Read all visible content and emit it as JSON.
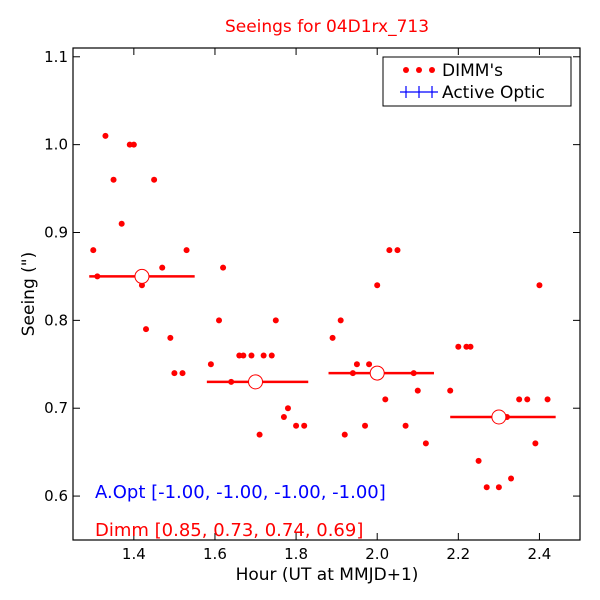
{
  "chart_data": {
    "type": "scatter",
    "title": "Seeings for 04D1rx_713",
    "xlabel": "Hour (UT at MMJD+1)",
    "ylabel": "Seeing (\")",
    "xlim": [
      1.25,
      2.5
    ],
    "ylim": [
      0.55,
      1.11
    ],
    "xticks": [
      1.4,
      1.6,
      1.8,
      2.0,
      2.2,
      2.4
    ],
    "xtick_labels": [
      "1.4",
      "1.6",
      "1.8",
      "2.0",
      "2.2",
      "2.4"
    ],
    "yticks": [
      0.6,
      0.7,
      0.8,
      0.9,
      1.0,
      1.1
    ],
    "ytick_labels": [
      "0.6",
      "0.7",
      "0.8",
      "0.9",
      "1.0",
      "1.1"
    ],
    "legend_position": "top-right",
    "legend": [
      {
        "label": "DIMM's",
        "color": "#ff0000",
        "marker": "dots"
      },
      {
        "label": "Active Optic",
        "color": "#0000ff",
        "marker": "plus"
      }
    ],
    "series": [
      {
        "name": "DIMM's",
        "color": "#ff0000",
        "points": [
          [
            1.3,
            0.88
          ],
          [
            1.31,
            0.85
          ],
          [
            1.33,
            1.01
          ],
          [
            1.35,
            0.96
          ],
          [
            1.37,
            0.91
          ],
          [
            1.39,
            1.0
          ],
          [
            1.4,
            1.0
          ],
          [
            1.42,
            0.84
          ],
          [
            1.43,
            0.79
          ],
          [
            1.45,
            0.96
          ],
          [
            1.47,
            0.86
          ],
          [
            1.49,
            0.78
          ],
          [
            1.5,
            0.74
          ],
          [
            1.52,
            0.74
          ],
          [
            1.53,
            0.88
          ],
          [
            1.59,
            0.75
          ],
          [
            1.61,
            0.8
          ],
          [
            1.62,
            0.86
          ],
          [
            1.64,
            0.73
          ],
          [
            1.66,
            0.76
          ],
          [
            1.67,
            0.76
          ],
          [
            1.69,
            0.76
          ],
          [
            1.71,
            0.67
          ],
          [
            1.72,
            0.76
          ],
          [
            1.74,
            0.76
          ],
          [
            1.75,
            0.8
          ],
          [
            1.77,
            0.69
          ],
          [
            1.78,
            0.7
          ],
          [
            1.8,
            0.68
          ],
          [
            1.82,
            0.68
          ],
          [
            1.89,
            0.78
          ],
          [
            1.91,
            0.8
          ],
          [
            1.92,
            0.67
          ],
          [
            1.94,
            0.74
          ],
          [
            1.95,
            0.75
          ],
          [
            1.97,
            0.68
          ],
          [
            1.98,
            0.75
          ],
          [
            2.0,
            0.84
          ],
          [
            2.02,
            0.71
          ],
          [
            2.03,
            0.88
          ],
          [
            2.05,
            0.88
          ],
          [
            2.07,
            0.68
          ],
          [
            2.09,
            0.74
          ],
          [
            2.1,
            0.72
          ],
          [
            2.12,
            0.66
          ],
          [
            2.18,
            0.72
          ],
          [
            2.2,
            0.77
          ],
          [
            2.22,
            0.77
          ],
          [
            2.23,
            0.77
          ],
          [
            2.25,
            0.64
          ],
          [
            2.27,
            0.61
          ],
          [
            2.3,
            0.61
          ],
          [
            2.32,
            0.69
          ],
          [
            2.33,
            0.62
          ],
          [
            2.35,
            0.71
          ],
          [
            2.37,
            0.71
          ],
          [
            2.39,
            0.66
          ],
          [
            2.4,
            0.84
          ],
          [
            2.42,
            0.71
          ]
        ]
      },
      {
        "name": "DIMM means",
        "color": "#ff0000",
        "bins": [
          {
            "x": 1.42,
            "x0": 1.29,
            "x1": 1.55,
            "y": 0.85
          },
          {
            "x": 1.7,
            "x0": 1.58,
            "x1": 1.83,
            "y": 0.73
          },
          {
            "x": 2.0,
            "x0": 1.88,
            "x1": 2.14,
            "y": 0.74
          },
          {
            "x": 2.3,
            "x0": 2.18,
            "x1": 2.44,
            "y": 0.69
          }
        ]
      }
    ],
    "annotations": [
      {
        "text": "A.Opt [-1.00, -1.00, -1.00, -1.00]",
        "color": "#0000ff"
      },
      {
        "text": "Dimm [0.85, 0.73, 0.74, 0.69]",
        "color": "#ff0000"
      }
    ]
  }
}
